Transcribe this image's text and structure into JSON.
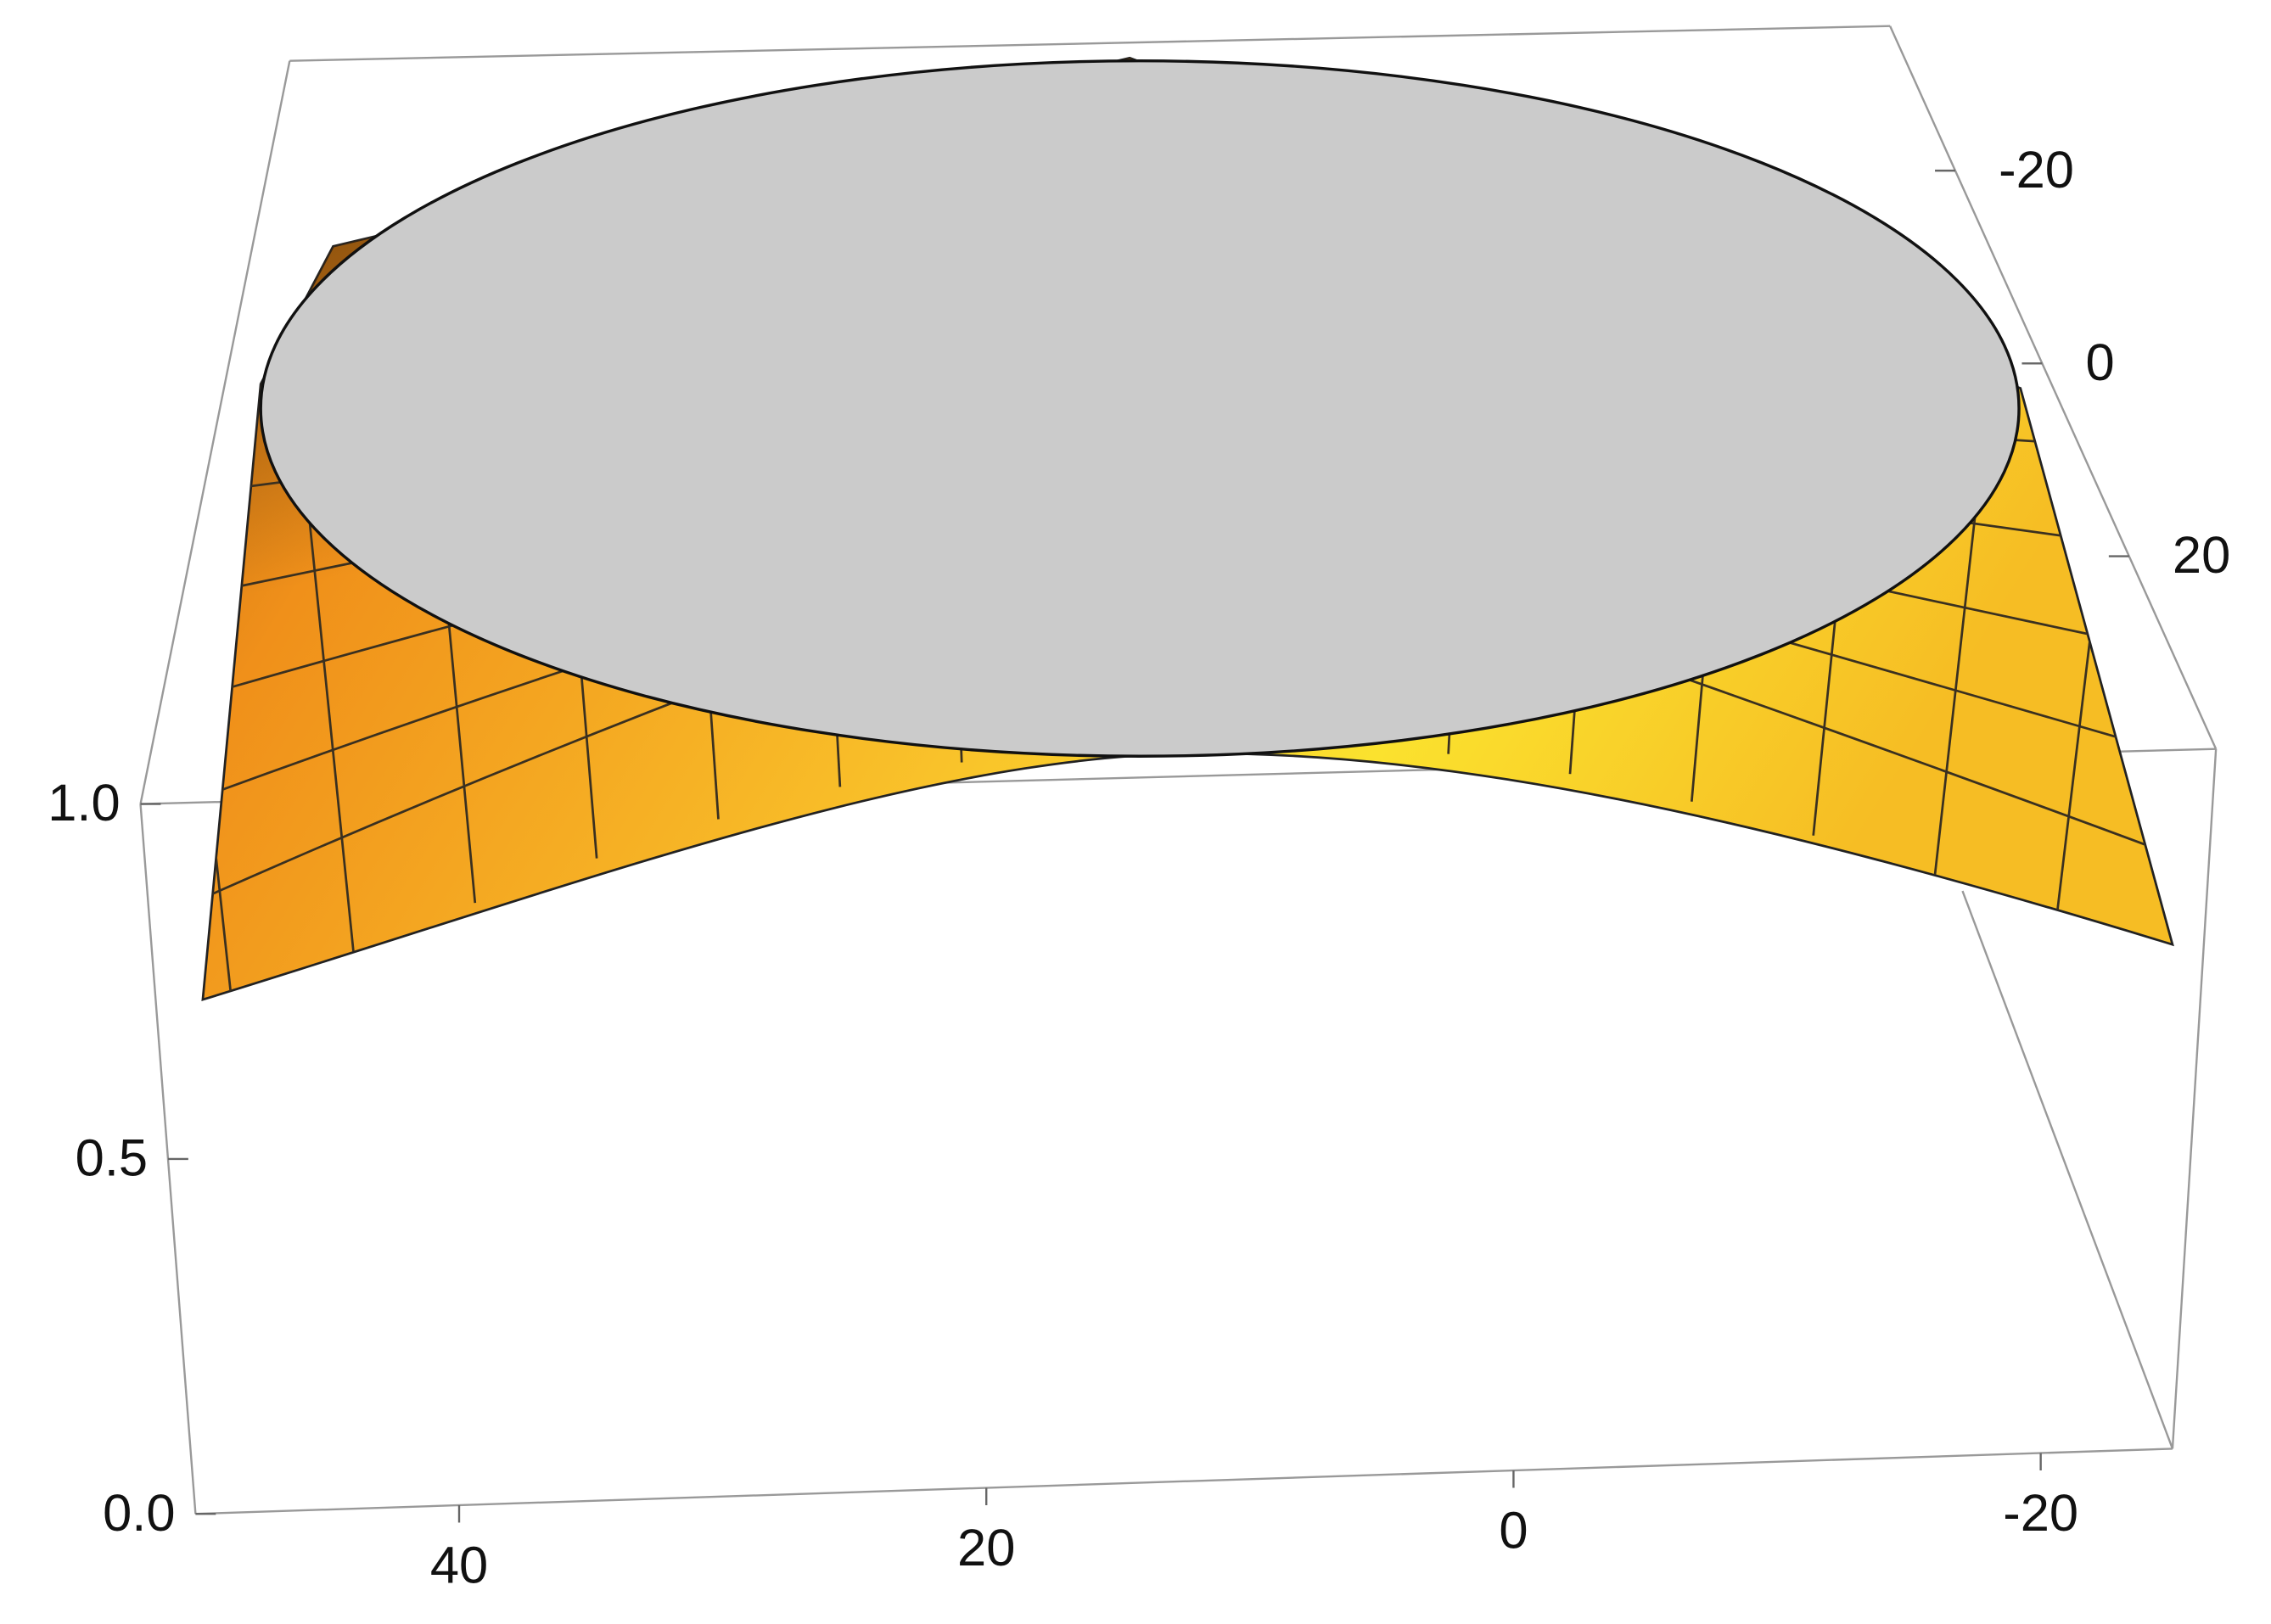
{
  "chart_data": {
    "type": "surface3d",
    "xticks": [
      40,
      20,
      0,
      -20
    ],
    "xlim": [
      50,
      -25
    ],
    "yticks": [
      -20,
      0,
      20
    ],
    "ylim": [
      -35,
      40
    ],
    "zticks": [
      {
        "value": 0,
        "label": "0.0"
      },
      {
        "value": 0.5,
        "label": "0.5"
      },
      {
        "value": 1,
        "label": "1.0"
      }
    ],
    "zlim": [
      0,
      1
    ]
  }
}
